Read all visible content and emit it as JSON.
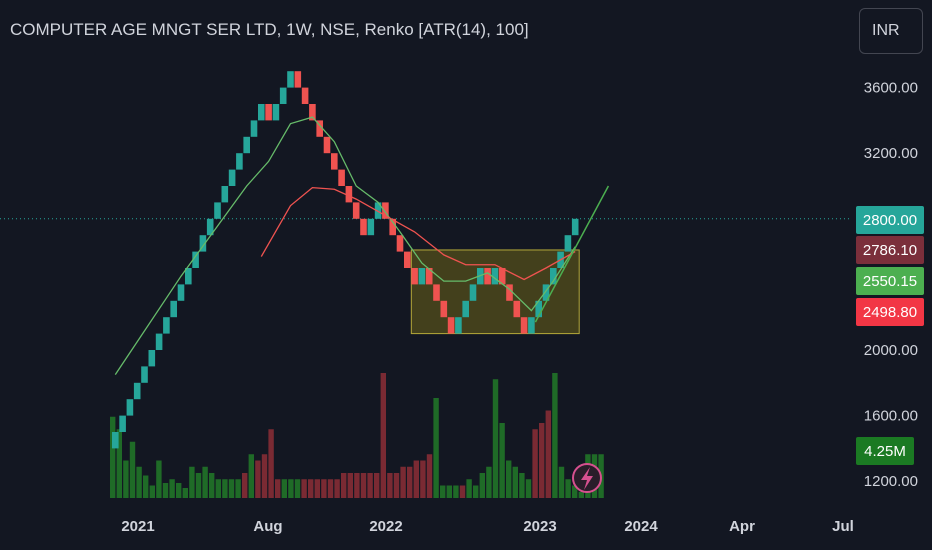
{
  "header": {
    "title": "COMPUTER AGE MNGT SER LTD, 1W, NSE, Renko [ATR(14), 100]",
    "currency_button": "INR"
  },
  "colors": {
    "background": "#131722",
    "up": "#26a69a",
    "down": "#ef5350",
    "ma_green": "#66bb6a",
    "ma_red": "#ef5350",
    "trend_line": "#4caf50",
    "box_fill": "#6b6318",
    "box_border": "#b5a83a",
    "price_line": "#26a69a"
  },
  "chart_data": {
    "type": "renko",
    "brick_size": 100,
    "x_axis_labels": [
      "2021",
      "Aug",
      "2022",
      "2023",
      "2024",
      "Apr",
      "Jul"
    ],
    "y_axis_labels": [
      "3600.00",
      "3200.00",
      "2800.00",
      "2000.00",
      "1600.00",
      "1200.00"
    ],
    "ylim": [
      1100,
      3900
    ],
    "price_tags": [
      {
        "label": "2800.00",
        "value": 2800,
        "color": "#26a69a"
      },
      {
        "label": "2786.10",
        "value": 2786.1,
        "color": "#7b2f3b"
      },
      {
        "label": "2550.15",
        "value": 2550.15,
        "color": "#4caf50"
      },
      {
        "label": "2498.80",
        "value": 2498.8,
        "color": "#f23645"
      }
    ],
    "volume_tag": {
      "label": "4.25M",
      "color": "#1b7a23"
    },
    "brick_closes": [
      1500,
      1600,
      1700,
      1800,
      1900,
      2000,
      2100,
      2200,
      2300,
      2400,
      2500,
      2600,
      2700,
      2800,
      2900,
      3000,
      3100,
      3200,
      3300,
      3400,
      3500,
      3400,
      3500,
      3600,
      3700,
      3600,
      3500,
      3400,
      3300,
      3200,
      3100,
      3000,
      2900,
      2800,
      2700,
      2800,
      2900,
      2800,
      2700,
      2600,
      2500,
      2400,
      2500,
      2400,
      2300,
      2200,
      2100,
      2200,
      2300,
      2400,
      2500,
      2400,
      2500,
      2400,
      2300,
      2200,
      2100,
      2200,
      2300,
      2400,
      2500,
      2600,
      2700,
      2800
    ],
    "ma_green": [
      [
        0,
        1850
      ],
      [
        9,
        2450
      ],
      [
        18,
        3000
      ],
      [
        21,
        3150
      ],
      [
        24,
        3380
      ],
      [
        27,
        3420
      ],
      [
        30,
        3270
      ],
      [
        33,
        3000
      ],
      [
        36,
        2900
      ],
      [
        39,
        2720
      ],
      [
        42,
        2530
      ],
      [
        45,
        2420
      ],
      [
        48,
        2420
      ],
      [
        51,
        2470
      ],
      [
        54,
        2370
      ],
      [
        57,
        2240
      ],
      [
        60,
        2420
      ],
      [
        63,
        2630
      ]
    ],
    "ma_red": [
      [
        20,
        2570
      ],
      [
        24,
        2880
      ],
      [
        27,
        2990
      ],
      [
        30,
        2980
      ],
      [
        33,
        2920
      ],
      [
        37,
        2820
      ],
      [
        41,
        2720
      ],
      [
        45,
        2580
      ],
      [
        48,
        2520
      ],
      [
        52,
        2520
      ],
      [
        56,
        2430
      ],
      [
        59,
        2500
      ],
      [
        63,
        2600
      ]
    ],
    "trend_line": [
      [
        58,
        2170
      ],
      [
        68,
        3000
      ]
    ],
    "box": {
      "from_brick": 41,
      "to_brick": 64,
      "low": 2100,
      "high": 2610
    },
    "volume": [
      {
        "h": 0.65,
        "d": 0
      },
      {
        "h": 0.55,
        "d": 0
      },
      {
        "h": 0.3,
        "d": 0
      },
      {
        "h": 0.45,
        "d": 0
      },
      {
        "h": 0.25,
        "d": 0
      },
      {
        "h": 0.18,
        "d": 0
      },
      {
        "h": 0.1,
        "d": 0
      },
      {
        "h": 0.3,
        "d": 0
      },
      {
        "h": 0.12,
        "d": 0
      },
      {
        "h": 0.15,
        "d": 0
      },
      {
        "h": 0.12,
        "d": 0
      },
      {
        "h": 0.08,
        "d": 0
      },
      {
        "h": 0.25,
        "d": 0
      },
      {
        "h": 0.2,
        "d": 0
      },
      {
        "h": 0.25,
        "d": 0
      },
      {
        "h": 0.2,
        "d": 0
      },
      {
        "h": 0.15,
        "d": 0
      },
      {
        "h": 0.15,
        "d": 0
      },
      {
        "h": 0.15,
        "d": 0
      },
      {
        "h": 0.15,
        "d": 0
      },
      {
        "h": 0.2,
        "d": 1
      },
      {
        "h": 0.35,
        "d": 0
      },
      {
        "h": 0.3,
        "d": 1
      },
      {
        "h": 0.35,
        "d": 1
      },
      {
        "h": 0.55,
        "d": 1
      },
      {
        "h": 0.15,
        "d": 1
      },
      {
        "h": 0.15,
        "d": 0
      },
      {
        "h": 0.15,
        "d": 0
      },
      {
        "h": 0.15,
        "d": 0
      },
      {
        "h": 0.15,
        "d": 1
      },
      {
        "h": 0.15,
        "d": 1
      },
      {
        "h": 0.15,
        "d": 1
      },
      {
        "h": 0.15,
        "d": 1
      },
      {
        "h": 0.15,
        "d": 1
      },
      {
        "h": 0.15,
        "d": 1
      },
      {
        "h": 0.2,
        "d": 1
      },
      {
        "h": 0.2,
        "d": 1
      },
      {
        "h": 0.2,
        "d": 1
      },
      {
        "h": 0.2,
        "d": 1
      },
      {
        "h": 0.2,
        "d": 1
      },
      {
        "h": 0.2,
        "d": 1
      },
      {
        "h": 1.0,
        "d": 1
      },
      {
        "h": 0.2,
        "d": 1
      },
      {
        "h": 0.2,
        "d": 1
      },
      {
        "h": 0.25,
        "d": 1
      },
      {
        "h": 0.25,
        "d": 1
      },
      {
        "h": 0.3,
        "d": 1
      },
      {
        "h": 0.3,
        "d": 1
      },
      {
        "h": 0.35,
        "d": 1
      },
      {
        "h": 0.8,
        "d": 0
      },
      {
        "h": 0.1,
        "d": 0
      },
      {
        "h": 0.1,
        "d": 0
      },
      {
        "h": 0.1,
        "d": 0
      },
      {
        "h": 0.1,
        "d": 1
      },
      {
        "h": 0.15,
        "d": 0
      },
      {
        "h": 0.1,
        "d": 0
      },
      {
        "h": 0.2,
        "d": 0
      },
      {
        "h": 0.25,
        "d": 0
      },
      {
        "h": 0.95,
        "d": 0
      },
      {
        "h": 0.6,
        "d": 0
      },
      {
        "h": 0.3,
        "d": 0
      },
      {
        "h": 0.25,
        "d": 0
      },
      {
        "h": 0.2,
        "d": 0
      },
      {
        "h": 0.15,
        "d": 0
      },
      {
        "h": 0.55,
        "d": 1
      },
      {
        "h": 0.6,
        "d": 1
      },
      {
        "h": 0.7,
        "d": 1
      },
      {
        "h": 1.0,
        "d": 0
      },
      {
        "h": 0.25,
        "d": 0
      },
      {
        "h": 0.15,
        "d": 0
      },
      {
        "h": 0.1,
        "d": 0
      },
      {
        "h": 0.05,
        "d": 0
      },
      {
        "h": 0.35,
        "d": 0
      },
      {
        "h": 0.35,
        "d": 0
      },
      {
        "h": 0.35,
        "d": 0
      }
    ]
  }
}
